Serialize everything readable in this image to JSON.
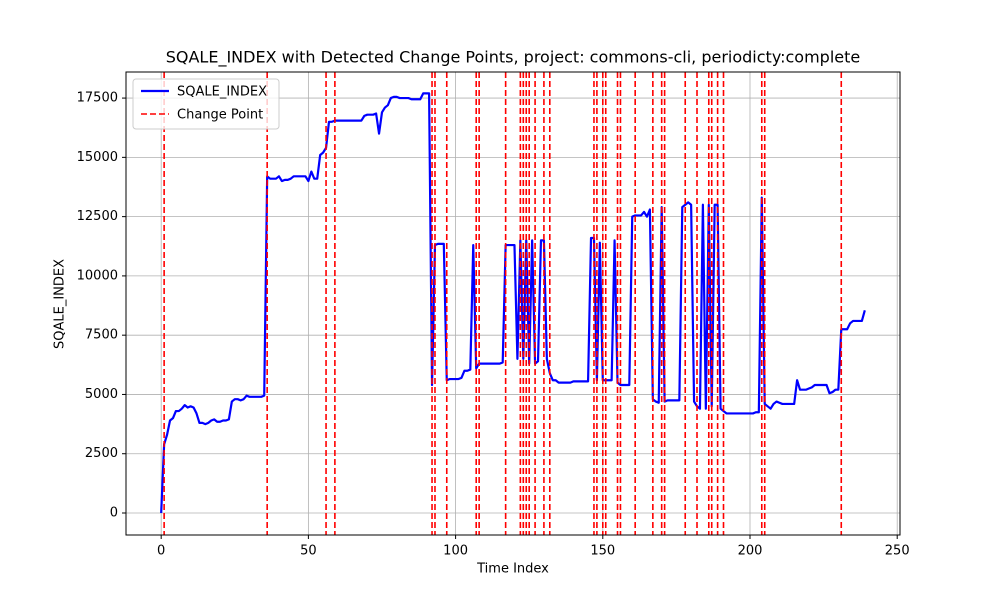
{
  "chart_data": {
    "type": "line",
    "title": "SQALE_INDEX with Detected Change Points, project: commons-cli, periodicty:complete",
    "xlabel": "Time Index",
    "ylabel": "SQALE_INDEX",
    "x": [
      0,
      1,
      2,
      3,
      4,
      5,
      6,
      7,
      8,
      9,
      10,
      11,
      12,
      13,
      14,
      15,
      16,
      17,
      18,
      19,
      20,
      21,
      22,
      23,
      24,
      25,
      26,
      27,
      28,
      29,
      30,
      31,
      32,
      33,
      34,
      35,
      36,
      37,
      38,
      39,
      40,
      41,
      42,
      43,
      44,
      45,
      46,
      47,
      48,
      49,
      50,
      51,
      52,
      53,
      54,
      55,
      56,
      57,
      58,
      59,
      60,
      61,
      62,
      63,
      64,
      65,
      66,
      67,
      68,
      69,
      70,
      71,
      72,
      73,
      74,
      75,
      76,
      77,
      78,
      79,
      80,
      81,
      82,
      83,
      84,
      85,
      86,
      87,
      88,
      89,
      90,
      91,
      92,
      93,
      94,
      95,
      96,
      97,
      98,
      99,
      100,
      101,
      102,
      103,
      104,
      105,
      106,
      107,
      108,
      109,
      110,
      111,
      112,
      113,
      114,
      115,
      116,
      117,
      118,
      119,
      120,
      121,
      122,
      123,
      124,
      125,
      126,
      127,
      128,
      129,
      130,
      131,
      132,
      133,
      134,
      135,
      136,
      137,
      138,
      139,
      140,
      141,
      142,
      143,
      144,
      145,
      146,
      147,
      148,
      149,
      150,
      151,
      152,
      153,
      154,
      155,
      156,
      157,
      158,
      159,
      160,
      161,
      162,
      163,
      164,
      165,
      166,
      167,
      168,
      169,
      170,
      171,
      172,
      173,
      174,
      175,
      176,
      177,
      178,
      179,
      180,
      181,
      182,
      183,
      184,
      185,
      186,
      187,
      188,
      189,
      190,
      191,
      192,
      193,
      194,
      195,
      196,
      197,
      198,
      199,
      200,
      201,
      202,
      203,
      204,
      205,
      206,
      207,
      208,
      209,
      210,
      211,
      212,
      213,
      214,
      215,
      216,
      217,
      218,
      219,
      220,
      221,
      222,
      223,
      224,
      225,
      226,
      227,
      228,
      229,
      230,
      231,
      232,
      233,
      234,
      235,
      236,
      237,
      238,
      239
    ],
    "series": [
      {
        "name": "SQALE_INDEX",
        "color": "#0000ff",
        "values": [
          0,
          2900,
          3300,
          3900,
          4000,
          4300,
          4300,
          4400,
          4550,
          4450,
          4500,
          4450,
          4200,
          3800,
          3800,
          3750,
          3800,
          3900,
          3950,
          3850,
          3850,
          3900,
          3900,
          3950,
          4700,
          4800,
          4800,
          4750,
          4800,
          4950,
          4900,
          4900,
          4900,
          4900,
          4900,
          4950,
          14200,
          14100,
          14100,
          14100,
          14200,
          14000,
          14050,
          14050,
          14100,
          14200,
          14200,
          14200,
          14200,
          14200,
          14000,
          14400,
          14100,
          14100,
          15100,
          15200,
          15400,
          16500,
          16500,
          16550,
          16550,
          16550,
          16550,
          16550,
          16550,
          16550,
          16550,
          16550,
          16550,
          16750,
          16800,
          16800,
          16800,
          16850,
          16000,
          16900,
          17100,
          17200,
          17500,
          17550,
          17550,
          17500,
          17500,
          17500,
          17500,
          17450,
          17450,
          17450,
          17450,
          17700,
          17700,
          17700,
          5400,
          11300,
          11350,
          11350,
          11350,
          5600,
          5650,
          5650,
          5650,
          5650,
          5700,
          6000,
          6000,
          6050,
          11300,
          6100,
          6300,
          6300,
          6300,
          6300,
          6300,
          6300,
          6300,
          6300,
          6350,
          11300,
          11300,
          11300,
          11300,
          6500,
          11500,
          6500,
          11500,
          6300,
          11500,
          6300,
          6400,
          11500,
          11500,
          6500,
          5900,
          5600,
          5600,
          5500,
          5500,
          5500,
          5500,
          5500,
          5550,
          5550,
          5550,
          5550,
          5550,
          5550,
          11600,
          11600,
          5600,
          11400,
          5600,
          5600,
          5600,
          5600,
          11500,
          5500,
          5400,
          5400,
          5400,
          5400,
          12500,
          12550,
          12550,
          12550,
          12700,
          12500,
          12800,
          4800,
          4700,
          4650,
          12900,
          4700,
          4750,
          4750,
          4750,
          4750,
          4750,
          12900,
          13000,
          13100,
          13000,
          4700,
          4500,
          4400,
          13000,
          4400,
          13000,
          4500,
          13000,
          13000,
          4400,
          4300,
          4200,
          4200,
          4200,
          4200,
          4200,
          4200,
          4200,
          4200,
          4200,
          4200,
          4250,
          4250,
          13300,
          4600,
          4500,
          4400,
          4600,
          4700,
          4650,
          4600,
          4600,
          4600,
          4600,
          4600,
          5600,
          5200,
          5200,
          5200,
          5250,
          5300,
          5400,
          5400,
          5400,
          5400,
          5400,
          5050,
          5100,
          5200,
          5200,
          7750,
          7750,
          7750,
          8000,
          8100,
          8100,
          8100,
          8100,
          8550
        ]
      }
    ],
    "change_points": {
      "name": "Change Point",
      "color": "#ff0000",
      "x": [
        1,
        36,
        56,
        59,
        92,
        93,
        97,
        107,
        108,
        117,
        122,
        123,
        124,
        125,
        127,
        130,
        132,
        147,
        148,
        150,
        151,
        155,
        156,
        161,
        167,
        170,
        171,
        178,
        182,
        186,
        187,
        189,
        191,
        204,
        205,
        231
      ]
    },
    "xlim": [
      -11.95,
      250.95
    ],
    "xticks": [
      0,
      50,
      100,
      150,
      200,
      250
    ],
    "ylim": [
      -928,
      18600
    ],
    "yticks": [
      0,
      2500,
      5000,
      7500,
      10000,
      12500,
      15000,
      17500
    ],
    "grid": true,
    "legend": "upper left"
  }
}
